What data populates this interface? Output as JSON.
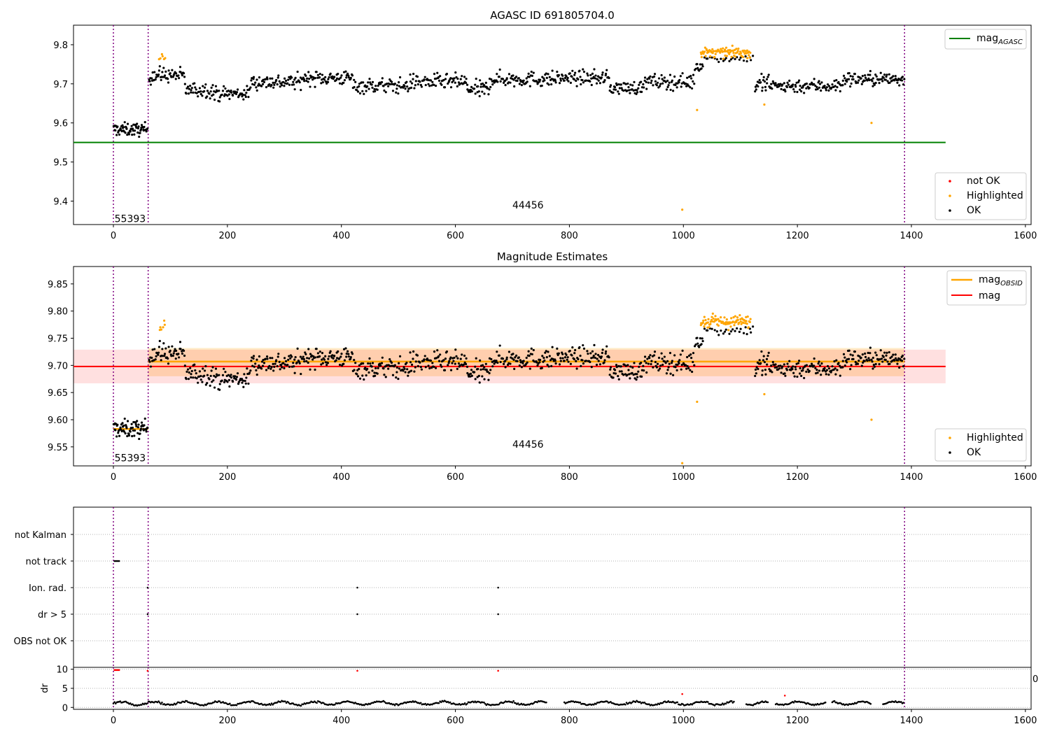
{
  "chart_data": [
    {
      "type": "scatter",
      "title": "AGASC ID 691805704.0",
      "xlim": [
        -70,
        1610
      ],
      "ylim": [
        9.34,
        9.85
      ],
      "xticks": [
        "0",
        "200",
        "400",
        "600",
        "800",
        "1000",
        "1200",
        "1400",
        "1600"
      ],
      "yticks": [
        "9.4",
        "9.5",
        "9.6",
        "9.7",
        "9.8"
      ],
      "reference_lines": [
        {
          "label": "mag_AGASC",
          "legend_main": "mag",
          "legend_sub": "AGASC",
          "y": 9.55,
          "x_range": [
            -70,
            1460
          ],
          "color": "#008000"
        }
      ],
      "obsid_boundaries": [
        0,
        61,
        1388
      ],
      "obsid_labels": [
        {
          "text": "55393",
          "x": 2,
          "y": 9.355
        },
        {
          "text": "44456",
          "x": 700,
          "y": 9.39
        }
      ],
      "legends": {
        "lines": {
          "placement": "top-right"
        },
        "points": {
          "placement": "bottom-right",
          "entries": [
            "not OK",
            "Highlighted",
            "OK"
          ]
        }
      },
      "series": [
        {
          "name": "OK",
          "color": "#000000",
          "segments": [
            {
              "x_range": [
                0,
                60
              ],
              "mean": 9.583,
              "spread": 0.011,
              "n": 70
            },
            {
              "x_range": [
                62,
                90
              ],
              "mean": 9.722,
              "spread": 0.014,
              "n": 25
            },
            {
              "x_range": [
                90,
                125
              ],
              "mean": 9.722,
              "spread": 0.012,
              "n": 30
            },
            {
              "x_range": [
                125,
                175
              ],
              "mean": 9.685,
              "spread": 0.013,
              "n": 40
            },
            {
              "x_range": [
                175,
                240
              ],
              "mean": 9.675,
              "spread": 0.012,
              "n": 55
            },
            {
              "x_range": [
                240,
                330
              ],
              "mean": 9.705,
              "spread": 0.013,
              "n": 75
            },
            {
              "x_range": [
                330,
                420
              ],
              "mean": 9.715,
              "spread": 0.012,
              "n": 75
            },
            {
              "x_range": [
                420,
                520
              ],
              "mean": 9.695,
              "spread": 0.013,
              "n": 80
            },
            {
              "x_range": [
                520,
                620
              ],
              "mean": 9.705,
              "spread": 0.013,
              "n": 80
            },
            {
              "x_range": [
                620,
                660
              ],
              "mean": 9.685,
              "spread": 0.015,
              "n": 35
            },
            {
              "x_range": [
                660,
                780
              ],
              "mean": 9.712,
              "spread": 0.013,
              "n": 95
            },
            {
              "x_range": [
                780,
                870
              ],
              "mean": 9.715,
              "spread": 0.012,
              "n": 75
            },
            {
              "x_range": [
                870,
                930
              ],
              "mean": 9.69,
              "spread": 0.011,
              "n": 50
            },
            {
              "x_range": [
                930,
                1020
              ],
              "mean": 9.705,
              "spread": 0.013,
              "n": 70
            },
            {
              "x_range": [
                1020,
                1035
              ],
              "mean": 9.745,
              "spread": 0.01,
              "n": 12
            },
            {
              "x_range": [
                1035,
                1125
              ],
              "mean": 9.765,
              "spread": 0.006,
              "n": 25
            },
            {
              "x_range": [
                1125,
                1150
              ],
              "mean": 9.7,
              "spread": 0.02,
              "n": 22
            },
            {
              "x_range": [
                1150,
                1280
              ],
              "mean": 9.695,
              "spread": 0.012,
              "n": 100
            },
            {
              "x_range": [
                1280,
                1388
              ],
              "mean": 9.712,
              "spread": 0.012,
              "n": 90
            }
          ]
        },
        {
          "name": "Highlighted",
          "color": "#ffa500",
          "segments": [
            {
              "x_range": [
                80,
                92
              ],
              "mean": 9.77,
              "spread": 0.006,
              "n": 6
            },
            {
              "x_range": [
                1030,
                1118
              ],
              "mean": 9.78,
              "spread": 0.008,
              "n": 90
            }
          ],
          "points": [
            [
              1024,
              9.633
            ],
            [
              998,
              9.378
            ],
            [
              1142,
              9.647
            ],
            [
              1330,
              9.6
            ]
          ]
        },
        {
          "name": "not OK",
          "color": "#ff0000",
          "points": []
        }
      ]
    },
    {
      "type": "scatter",
      "title": "Magnitude Estimates",
      "xlim": [
        -70,
        1610
      ],
      "ylim": [
        9.515,
        9.882
      ],
      "xticks": [
        "0",
        "200",
        "400",
        "600",
        "800",
        "1000",
        "1200",
        "1400",
        "1600"
      ],
      "yticks": [
        "9.55",
        "9.60",
        "9.65",
        "9.70",
        "9.75",
        "9.80",
        "9.85"
      ],
      "reference_lines": [
        {
          "label": "mag_OBSID",
          "legend_main": "mag",
          "legend_sub": "OBSID",
          "color": "#ffa500",
          "segments": [
            {
              "x_range": [
                0,
                61
              ],
              "y": 9.583
            },
            {
              "x_range": [
                61,
                1388
              ],
              "y": 9.707
            }
          ]
        },
        {
          "label": "mag",
          "legend_main": "mag",
          "legend_sub": "",
          "y": 9.698,
          "x_range": [
            -70,
            1460
          ],
          "color": "#ff0000"
        }
      ],
      "bands": [
        {
          "color": "#ffa500",
          "opacity": 0.22,
          "x_range": [
            61,
            1388
          ],
          "y_range": [
            9.68,
            9.732
          ]
        },
        {
          "color": "#ff0000",
          "opacity": 0.12,
          "x_range": [
            -70,
            1460
          ],
          "y_range": [
            9.667,
            9.729
          ]
        }
      ],
      "obsid_boundaries": [
        0,
        61,
        1388
      ],
      "obsid_labels": [
        {
          "text": "55393",
          "x": 2,
          "y": 9.53
        },
        {
          "text": "44456",
          "x": 700,
          "y": 9.555
        }
      ],
      "legends": {
        "lines": {
          "placement": "top-right"
        },
        "points": {
          "placement": "bottom-right",
          "entries": [
            "Highlighted",
            "OK"
          ]
        }
      },
      "series": [
        {
          "name": "OK",
          "color": "#000000",
          "same_as_panel": 0
        },
        {
          "name": "Highlighted",
          "color": "#ffa500",
          "same_as_panel": 0,
          "points_override": [
            [
              1024,
              9.633
            ],
            [
              998,
              9.52
            ],
            [
              1142,
              9.647
            ],
            [
              1330,
              9.6
            ]
          ]
        }
      ]
    },
    {
      "type": "scatter",
      "title": "",
      "xlim": [
        -70,
        1610
      ],
      "categories": [
        "not Kalman",
        "not track",
        "Ion. rad.",
        "dr > 5",
        "OBS not OK"
      ],
      "flag_points": {
        "not track": [
          [
            2,
            10
          ],
          [
            4,
            10
          ],
          [
            6,
            10
          ],
          [
            8,
            10
          ],
          [
            10,
            10
          ]
        ],
        "Ion. rad.": [
          [
            60,
            10
          ],
          [
            428,
            10
          ],
          [
            675,
            10
          ]
        ],
        "dr > 5": [
          [
            60,
            10
          ],
          [
            428,
            10
          ],
          [
            675,
            10
          ]
        ],
        "OBS not OK": [],
        "not Kalman": []
      },
      "obsid_boundaries": [
        0,
        61,
        1388
      ]
    },
    {
      "type": "scatter",
      "title": "",
      "ylabel": "dr",
      "xlim": [
        -70,
        1610
      ],
      "ylim": [
        -0.5,
        10.5
      ],
      "xticks": [
        "0",
        "200",
        "400",
        "600",
        "800",
        "1000",
        "1200",
        "1400",
        "1600"
      ],
      "yticks": [
        "0",
        "5",
        "10"
      ],
      "edge_label": "0",
      "obsid_boundaries": [
        0,
        61,
        1388
      ],
      "series": [
        {
          "name": "OK",
          "color": "#000000",
          "baseline": 1.1,
          "amplitude": 0.6,
          "x_range": [
            0,
            1388
          ],
          "n": 700,
          "gaps": [
            [
              760,
              790
            ],
            [
              1090,
              1110
            ],
            [
              1150,
              1160
            ],
            [
              1250,
              1260
            ],
            [
              1330,
              1350
            ]
          ]
        },
        {
          "name": "not OK",
          "color": "#ff0000",
          "points": [
            [
              2,
              9.8
            ],
            [
              4,
              9.8
            ],
            [
              6,
              9.8
            ],
            [
              8,
              9.8
            ],
            [
              10,
              9.8
            ],
            [
              60,
              9.6
            ],
            [
              428,
              9.6
            ],
            [
              675,
              9.6
            ],
            [
              998,
              3.5
            ],
            [
              1178,
              3.1
            ]
          ]
        }
      ]
    }
  ]
}
